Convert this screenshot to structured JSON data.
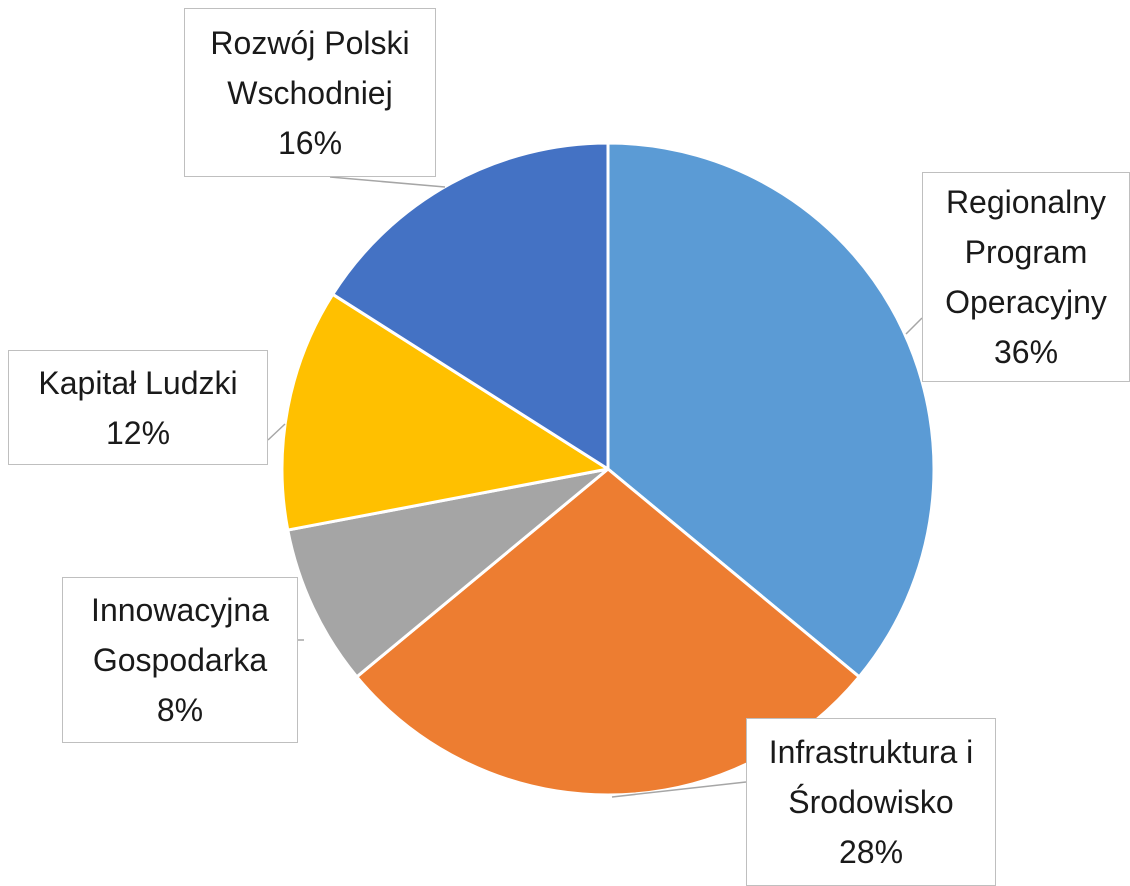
{
  "chart_data": {
    "type": "pie",
    "categories": [
      "Regionalny Program Operacyjny",
      "Infrastruktura i Środowisko",
      "Innowacyjna Gospodarka",
      "Kapitał Ludzki",
      "Rozwój Polski Wschodniej"
    ],
    "values": [
      36,
      28,
      8,
      12,
      16
    ],
    "value_labels": [
      "36%",
      "28%",
      "8%",
      "12%",
      "16%"
    ],
    "colors": [
      "#5b9bd5",
      "#ed7d31",
      "#a5a5a5",
      "#ffc000",
      "#4472c4"
    ]
  }
}
